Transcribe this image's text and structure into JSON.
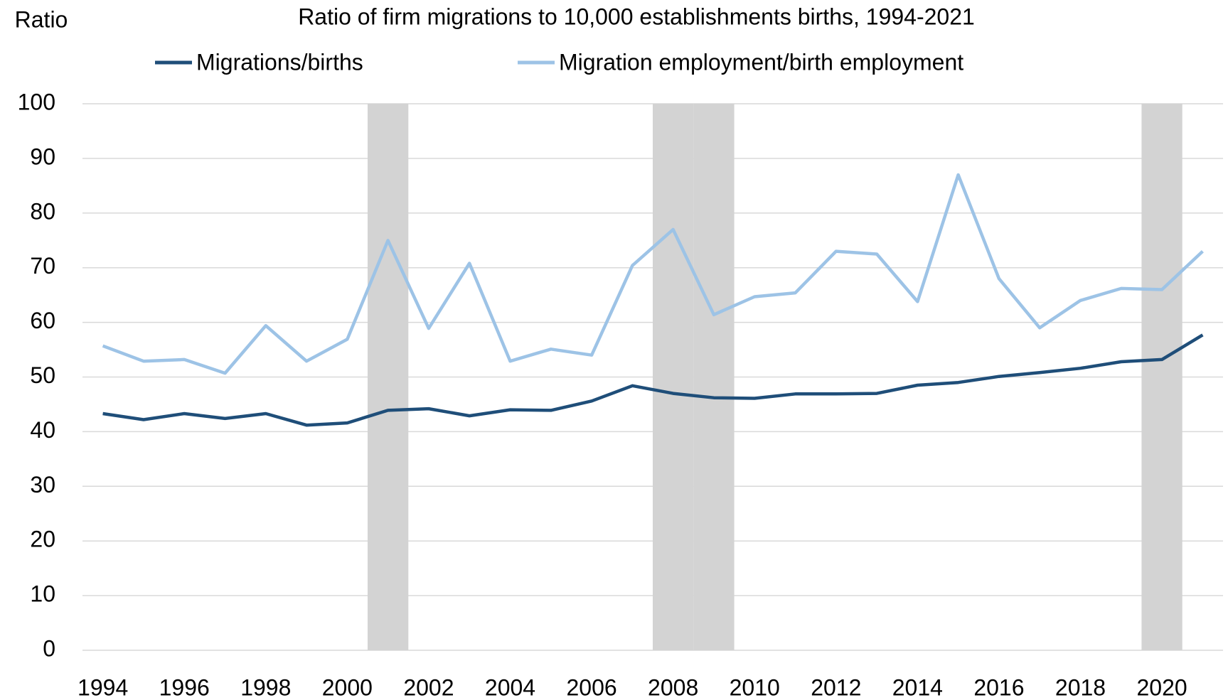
{
  "chart_data": {
    "type": "line",
    "title": "Ratio of firm migrations to 10,000 establishments births, 1994-2021",
    "y_label": "Ratio",
    "x": [
      1994,
      1995,
      1996,
      1997,
      1998,
      1999,
      2000,
      2001,
      2002,
      2003,
      2004,
      2005,
      2006,
      2007,
      2008,
      2009,
      2010,
      2011,
      2012,
      2013,
      2014,
      2015,
      2016,
      2017,
      2018,
      2019,
      2020,
      2021
    ],
    "series": [
      {
        "name": "Migrations/births",
        "color": "#1f4e79",
        "values": [
          43.3,
          42.2,
          43.3,
          42.4,
          43.3,
          41.2,
          41.6,
          43.9,
          44.2,
          42.9,
          44.0,
          43.9,
          45.6,
          48.4,
          47.0,
          46.2,
          46.1,
          46.9,
          46.9,
          47.0,
          48.5,
          49.0,
          50.1,
          50.8,
          51.6,
          52.8,
          53.2,
          57.7
        ]
      },
      {
        "name": "Migration employment/birth employment",
        "color": "#9dc3e6",
        "values": [
          55.7,
          52.9,
          53.2,
          50.7,
          59.4,
          52.9,
          56.9,
          75.0,
          58.9,
          70.8,
          52.9,
          55.1,
          54.0,
          70.4,
          77.0,
          61.4,
          64.7,
          65.4,
          73.0,
          72.5,
          63.8,
          87.0,
          68.0,
          59.0,
          64.0,
          66.2,
          66.0,
          73.0
        ]
      }
    ],
    "shaded_years": [
      2001,
      2008,
      2009,
      2020
    ],
    "shade_color": "#d3d3d3",
    "xlim": [
      1993.5,
      2021.5
    ],
    "xticks": [
      1994,
      1996,
      1998,
      2000,
      2002,
      2004,
      2006,
      2008,
      2010,
      2012,
      2014,
      2016,
      2018,
      2020
    ],
    "ylim": [
      0,
      100
    ],
    "yticks": [
      0,
      10,
      20,
      30,
      40,
      50,
      60,
      70,
      80,
      90,
      100
    ],
    "grid": true,
    "legend": "top"
  }
}
